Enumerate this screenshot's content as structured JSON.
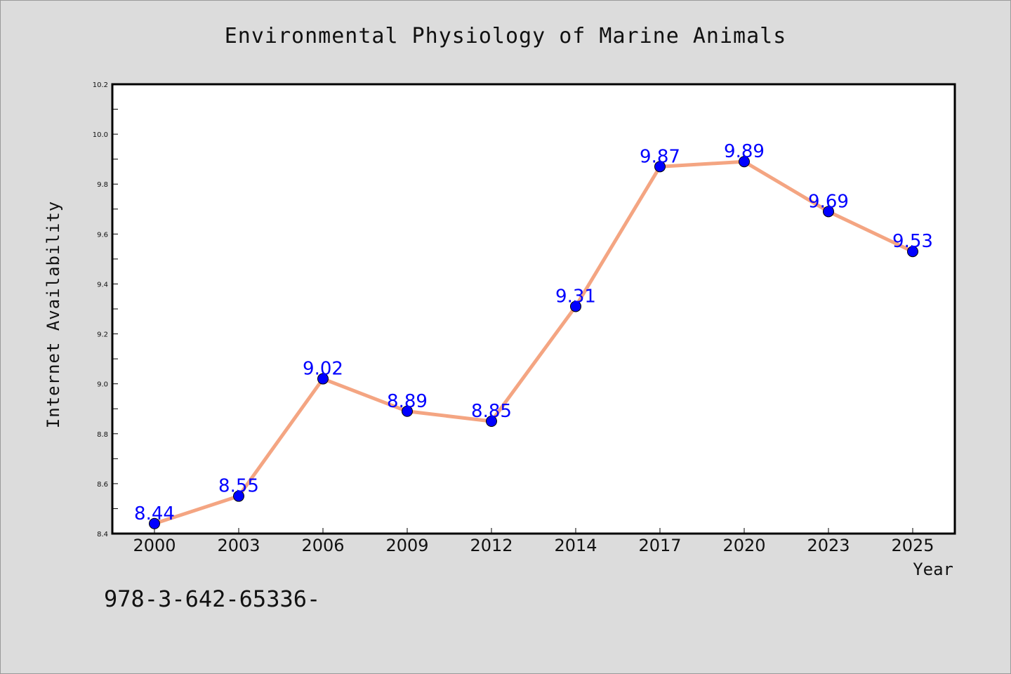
{
  "chart_data": {
    "type": "line",
    "title": "Environmental Physiology of Marine Animals",
    "xlabel": "Year",
    "ylabel": "Internet Availability",
    "categories": [
      "2000",
      "2003",
      "2006",
      "2009",
      "2012",
      "2014",
      "2017",
      "2020",
      "2023",
      "2025"
    ],
    "series": [
      {
        "values": [
          8.44,
          8.55,
          9.02,
          8.89,
          8.85,
          9.31,
          9.87,
          9.89,
          9.69,
          9.53
        ]
      }
    ],
    "data_labels": [
      "8.44",
      "8.55",
      "9.02",
      "8.89",
      "8.85",
      "9.31",
      "9.87",
      "9.89",
      "9.69",
      "9.53"
    ],
    "ylim": [
      8.4,
      10.2
    ],
    "yticks": [
      "8.4",
      "8.6",
      "8.8",
      "9.0",
      "9.2",
      "9.4",
      "9.6",
      "9.8",
      "10.0",
      "10.2"
    ],
    "grid": false,
    "legend": "none",
    "colors": {
      "line": "#f4a582",
      "marker": "#0000ff",
      "label": "#0000ff",
      "plot_bg": "#ffffff",
      "page_bg": "#dcdcdc"
    }
  },
  "footer": {
    "text": "978-3-642-65336-"
  }
}
